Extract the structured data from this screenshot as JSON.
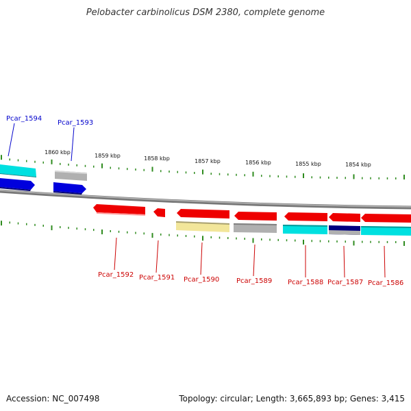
{
  "title": "Pelobacter carbinolicus DSM 2380, complete genome",
  "footer": {
    "accession": "Accession: NC_007498",
    "summary": "Topology: circular; Length: 3,665,893 bp; Genes: 3,415"
  },
  "colors": {
    "backbone": "#8a8a8a",
    "tick": "#2e8b1e",
    "top_label": "#0000cc",
    "bottom_label": "#cc0000"
  },
  "kbp_markers": [
    {
      "label": "1860 kbp"
    },
    {
      "label": "1859 kbp"
    },
    {
      "label": "1858 kbp"
    },
    {
      "label": "1857 kbp"
    },
    {
      "label": "1856 kbp"
    },
    {
      "label": "1855 kbp"
    },
    {
      "label": "1854 kbp"
    }
  ],
  "genes_top": [
    {
      "label": "Pcar_1594",
      "color": "#0000dd",
      "stripe": "#00e0e0"
    },
    {
      "label": "Pcar_1593",
      "color": "#0000dd",
      "stripe": "#b0b0b0"
    }
  ],
  "genes_bottom": [
    {
      "label": "Pcar_1592",
      "color": "#ee0000",
      "stripe": null
    },
    {
      "label": "Pcar_1591",
      "color": "#ee0000",
      "stripe": null
    },
    {
      "label": "Pcar_1590",
      "color": "#ee0000",
      "stripe": "#f2e69a"
    },
    {
      "label": "Pcar_1589",
      "color": "#ee0000",
      "stripe": "#b0b0b0"
    },
    {
      "label": "Pcar_1588",
      "color": "#ee0000",
      "stripe": "#00e0e0"
    },
    {
      "label": "Pcar_1587",
      "color": "#ee0000",
      "stripe": "#000080"
    },
    {
      "label": "Pcar_1586",
      "color": "#ee0000",
      "stripe": "#00e0e0"
    }
  ]
}
